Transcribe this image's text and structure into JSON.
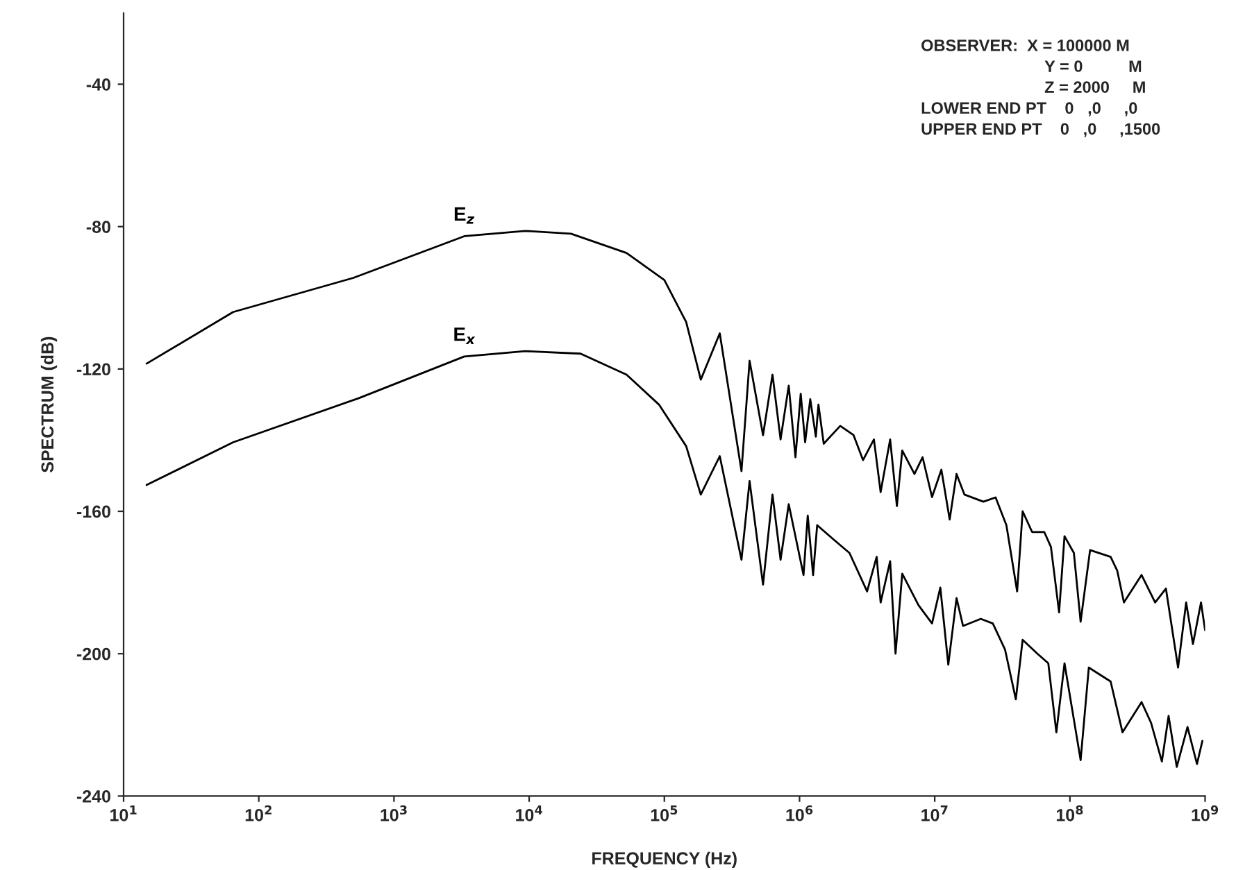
{
  "chart_data": {
    "type": "line",
    "xlabel": "FREQUENCY (Hz)",
    "ylabel": "SPECTRUM (dB)",
    "log": "x",
    "grid": false,
    "legend": false,
    "marker": "none",
    "line_style": "solid",
    "xlim": [
      10,
      1000000000
    ],
    "xticks": [
      {
        "value": 10,
        "label": "10$^{1}$"
      },
      {
        "value": 100,
        "label": "10$^{2}$"
      },
      {
        "value": 1000,
        "label": "10$^{3}$"
      },
      {
        "value": 10000,
        "label": "10$^{4}$"
      },
      {
        "value": 100000,
        "label": "10$^{5}$"
      },
      {
        "value": 1000000,
        "label": "10$^{6}$"
      },
      {
        "value": 10000000,
        "label": "10$^{7}$"
      },
      {
        "value": 100000000,
        "label": "10$^{8}$"
      },
      {
        "value": 1000000000,
        "label": "10$^{9}$"
      }
    ],
    "ylim": [
      -240,
      -20
    ],
    "yticks": [
      -240,
      -200,
      -160,
      -120,
      -80,
      -40
    ],
    "series": [
      {
        "name": "E$_{z}$",
        "color": "#000000",
        "x": [
          14.8,
          64.6,
          501,
          3310,
          9330,
          20400,
          52500,
          100000,
          145000,
          186000,
          257000,
          372000,
          427000,
          537000,
          631000,
          724000,
          832000,
          933000,
          1020000,
          1100000,
          1200000,
          1320000,
          1380000,
          1510000,
          2000000,
          2510000,
          2950000,
          3550000,
          3980000,
          4680000,
          5250000,
          5750000,
          7080000,
          8130000,
          9550000,
          11200000,
          12900000,
          14500000,
          16600000,
          22900000,
          28200000,
          33900000,
          40700000,
          44700000,
          52500000,
          64600000,
          72400000,
          83200000,
          91200000,
          107000000,
          120000000,
          141000000,
          200000000,
          224000000,
          251000000,
          339000000,
          427000000,
          513000000,
          631000000,
          724000000,
          813000000,
          933000000,
          1000000000
        ],
        "values": [
          -118.5,
          -104,
          -94.4,
          -82.7,
          -81.2,
          -82,
          -87.4,
          -95,
          -106.8,
          -123,
          -110,
          -148.7,
          -117.7,
          -138.6,
          -121.6,
          -139.8,
          -124.7,
          -144.8,
          -127,
          -140.6,
          -128.5,
          -139,
          -130,
          -141,
          -136,
          -138.6,
          -145.6,
          -139.8,
          -154.6,
          -139.8,
          -158.5,
          -142.9,
          -149.5,
          -144.8,
          -156,
          -148.3,
          -162.3,
          -149.5,
          -155.3,
          -157.3,
          -156.1,
          -163.9,
          -182.5,
          -160,
          -165.8,
          -165.8,
          -170,
          -188.4,
          -167,
          -171.7,
          -191,
          -170.9,
          -172.8,
          -176.7,
          -185.6,
          -177.9,
          -185.6,
          -181.7,
          -203.9,
          -185.6,
          -197.3,
          -185.6,
          -193.4
        ]
      },
      {
        "name": "E$_{x}$",
        "color": "#000000",
        "x": [
          14.8,
          64.6,
          550,
          3310,
          9330,
          24000,
          52500,
          91200,
          145000,
          186000,
          257000,
          372000,
          427000,
          537000,
          631000,
          724000,
          832000,
          1070000,
          1150000,
          1260000,
          1350000,
          1820000,
          2340000,
          3160000,
          3720000,
          3980000,
          4680000,
          5130000,
          5750000,
          7590000,
          9550000,
          11000000,
          12600000,
          14500000,
          16200000,
          21900000,
          26900000,
          33100000,
          39800000,
          44700000,
          57500000,
          69200000,
          79400000,
          91200000,
          120000000,
          138000000,
          200000000,
          245000000,
          339000000,
          398000000,
          479000000,
          537000000,
          617000000,
          741000000,
          871000000,
          955000000
        ],
        "values": [
          -152.6,
          -140.6,
          -128.2,
          -116.5,
          -115,
          -115.7,
          -121.6,
          -130,
          -141.7,
          -155.3,
          -144.5,
          -173.6,
          -151.5,
          -180.6,
          -155.3,
          -173.6,
          -158,
          -177.9,
          -161.2,
          -177.9,
          -163.9,
          -168.2,
          -171.7,
          -182.5,
          -172.8,
          -185.6,
          -174,
          -200,
          -177.5,
          -186.4,
          -191.5,
          -181.4,
          -203.1,
          -184.4,
          -192.2,
          -190.2,
          -191.5,
          -198.8,
          -212.8,
          -196.1,
          -200,
          -202.7,
          -222.1,
          -202.7,
          -229.9,
          -203.9,
          -207.8,
          -222.1,
          -213.6,
          -219.4,
          -230.3,
          -217.5,
          -231.8,
          -220.6,
          -231,
          -224.5
        ]
      }
    ],
    "annotations": [
      "OBSERVER:  X = 100000 M",
      "Y = 0          M",
      "Z = 2000     M",
      "LOWER END PT    0   ,0     ,0",
      "UPPER END PT    0   ,0     ,1500"
    ]
  }
}
